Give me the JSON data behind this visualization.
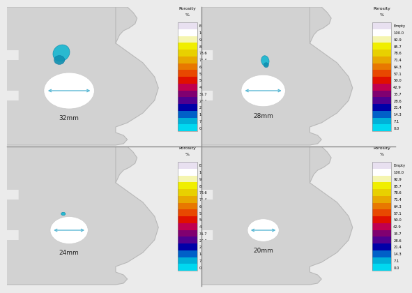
{
  "panels": [
    {
      "diameter": "32mm",
      "diam_val": 32,
      "has_porosity": true,
      "porosity_size": "large"
    },
    {
      "diameter": "28mm",
      "diam_val": 28,
      "has_porosity": true,
      "porosity_size": "small"
    },
    {
      "diameter": "24mm",
      "diam_val": 24,
      "has_porosity": true,
      "porosity_size": "tiny"
    },
    {
      "diameter": "20mm",
      "diam_val": 20,
      "has_porosity": false,
      "porosity_size": "none"
    }
  ],
  "colorbar_labels": [
    "Empty",
    "100.0",
    "92.9",
    "85.7",
    "78.6",
    "71.4",
    "64.3",
    "57.1",
    "50.0",
    "42.9",
    "35.7",
    "28.6",
    "21.4",
    "14.3",
    "7.1",
    "0.0"
  ],
  "seg_colors": [
    "#e8e0f0",
    "#ffffff",
    "#f5f5b0",
    "#f0ee00",
    "#e8d000",
    "#e8a800",
    "#e87800",
    "#e84800",
    "#e01000",
    "#c00050",
    "#800070",
    "#500090",
    "#0000a8",
    "#0060c8",
    "#00b0d8",
    "#00d8f0"
  ],
  "colorbar_title1": "Porosity",
  "colorbar_title2": "%",
  "bg_color": "#ebebeb",
  "part_color": "#d0d0d0",
  "part_color2": "#c8c8c8",
  "hole_color": "#ffffff",
  "arrow_color": "#5ab8d4",
  "border_color": "#b0b0b0",
  "divider_color": "#888888"
}
